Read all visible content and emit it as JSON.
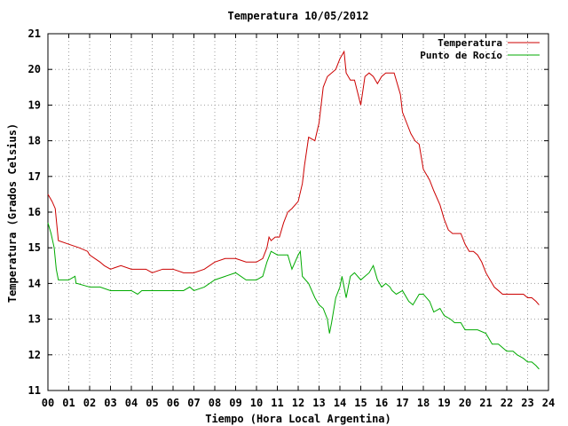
{
  "chart_data": {
    "type": "line",
    "title": "Temperatura 10/05/2012",
    "xlabel": "Tiempo (Hora Local Argentina)",
    "ylabel": "Temperatura (Grados Celsius)",
    "xlim": [
      0,
      24
    ],
    "ylim": [
      11,
      21
    ],
    "grid": true,
    "legend_position": "top-right",
    "x_tick_labels": [
      "00",
      "01",
      "02",
      "03",
      "04",
      "05",
      "06",
      "07",
      "08",
      "09",
      "10",
      "11",
      "12",
      "13",
      "14",
      "15",
      "16",
      "17",
      "18",
      "19",
      "20",
      "21",
      "22",
      "23",
      "24"
    ],
    "y_tick_labels": [
      "11",
      "12",
      "13",
      "14",
      "15",
      "16",
      "17",
      "18",
      "19",
      "20",
      "21"
    ],
    "series": [
      {
        "name": "Temperatura",
        "color": "#cc0000",
        "x": [
          0.0,
          0.2,
          0.35,
          0.45,
          0.5,
          1.0,
          1.5,
          1.9,
          2.0,
          2.5,
          2.7,
          3.0,
          3.5,
          4.0,
          4.5,
          4.7,
          5.0,
          5.5,
          6.0,
          6.5,
          7.0,
          7.5,
          8.0,
          8.5,
          9.0,
          9.5,
          10.0,
          10.3,
          10.5,
          10.6,
          10.7,
          10.9,
          11.1,
          11.3,
          11.5,
          11.7,
          12.0,
          12.2,
          12.3,
          12.5,
          12.8,
          13.0,
          13.2,
          13.4,
          13.6,
          13.8,
          14.0,
          14.2,
          14.3,
          14.5,
          14.7,
          15.0,
          15.2,
          15.4,
          15.6,
          15.8,
          16.0,
          16.2,
          16.4,
          16.6,
          16.9,
          17.0,
          17.2,
          17.4,
          17.6,
          17.8,
          18.0,
          18.3,
          18.5,
          18.8,
          19.0,
          19.2,
          19.4,
          19.6,
          19.8,
          20.0,
          20.2,
          20.4,
          20.6,
          20.8,
          21.0,
          21.2,
          21.4,
          21.6,
          21.8,
          22.0,
          22.4,
          22.8,
          23.0,
          23.2,
          23.4,
          23.55
        ],
        "values": [
          16.5,
          16.3,
          16.1,
          15.5,
          15.2,
          15.1,
          15.0,
          14.9,
          14.8,
          14.6,
          14.5,
          14.4,
          14.5,
          14.4,
          14.4,
          14.4,
          14.3,
          14.4,
          14.4,
          14.3,
          14.3,
          14.4,
          14.6,
          14.7,
          14.7,
          14.6,
          14.6,
          14.7,
          15.0,
          15.3,
          15.2,
          15.3,
          15.3,
          15.7,
          16.0,
          16.1,
          16.3,
          16.8,
          17.3,
          18.1,
          18.0,
          18.5,
          19.5,
          19.8,
          19.9,
          20.0,
          20.3,
          20.5,
          19.9,
          19.7,
          19.7,
          19.0,
          19.8,
          19.9,
          19.8,
          19.6,
          19.8,
          19.9,
          19.9,
          19.9,
          19.3,
          18.8,
          18.5,
          18.2,
          18.0,
          17.9,
          17.2,
          16.9,
          16.6,
          16.2,
          15.8,
          15.5,
          15.4,
          15.4,
          15.4,
          15.1,
          14.9,
          14.9,
          14.8,
          14.6,
          14.3,
          14.1,
          13.9,
          13.8,
          13.7,
          13.7,
          13.7,
          13.7,
          13.6,
          13.6,
          13.5,
          13.4
        ]
      },
      {
        "name": "Punto de Rocío",
        "color": "#00aa00",
        "x": [
          0.0,
          0.15,
          0.3,
          0.4,
          0.5,
          1.0,
          1.3,
          1.35,
          1.4,
          2.0,
          2.5,
          3.0,
          3.5,
          4.0,
          4.3,
          4.5,
          5.0,
          5.5,
          6.0,
          6.5,
          6.8,
          7.0,
          7.5,
          8.0,
          8.5,
          9.0,
          9.5,
          10.0,
          10.3,
          10.5,
          10.7,
          11.0,
          11.3,
          11.5,
          11.7,
          12.0,
          12.1,
          12.2,
          12.5,
          12.8,
          13.0,
          13.2,
          13.4,
          13.5,
          13.6,
          13.8,
          14.0,
          14.1,
          14.3,
          14.5,
          14.7,
          15.0,
          15.2,
          15.4,
          15.6,
          15.8,
          16.0,
          16.2,
          16.4,
          16.5,
          16.7,
          17.0,
          17.3,
          17.5,
          17.8,
          18.0,
          18.3,
          18.5,
          18.8,
          19.0,
          19.3,
          19.5,
          19.8,
          20.0,
          20.3,
          20.6,
          21.0,
          21.3,
          21.6,
          21.8,
          22.0,
          22.3,
          22.5,
          22.8,
          23.0,
          23.2,
          23.4,
          23.55
        ],
        "values": [
          15.7,
          15.4,
          15.0,
          14.4,
          14.1,
          14.1,
          14.2,
          14.0,
          14.0,
          13.9,
          13.9,
          13.8,
          13.8,
          13.8,
          13.7,
          13.8,
          13.8,
          13.8,
          13.8,
          13.8,
          13.9,
          13.8,
          13.9,
          14.1,
          14.2,
          14.3,
          14.1,
          14.1,
          14.2,
          14.6,
          14.9,
          14.8,
          14.8,
          14.8,
          14.4,
          14.8,
          14.9,
          14.2,
          14.0,
          13.6,
          13.4,
          13.3,
          13.0,
          12.6,
          12.9,
          13.6,
          13.9,
          14.2,
          13.6,
          14.2,
          14.3,
          14.1,
          14.2,
          14.3,
          14.5,
          14.1,
          13.9,
          14.0,
          13.9,
          13.8,
          13.7,
          13.8,
          13.5,
          13.4,
          13.7,
          13.7,
          13.5,
          13.2,
          13.3,
          13.1,
          13.0,
          12.9,
          12.9,
          12.7,
          12.7,
          12.7,
          12.6,
          12.3,
          12.3,
          12.2,
          12.1,
          12.1,
          12.0,
          11.9,
          11.8,
          11.8,
          11.7,
          11.6
        ]
      }
    ]
  }
}
